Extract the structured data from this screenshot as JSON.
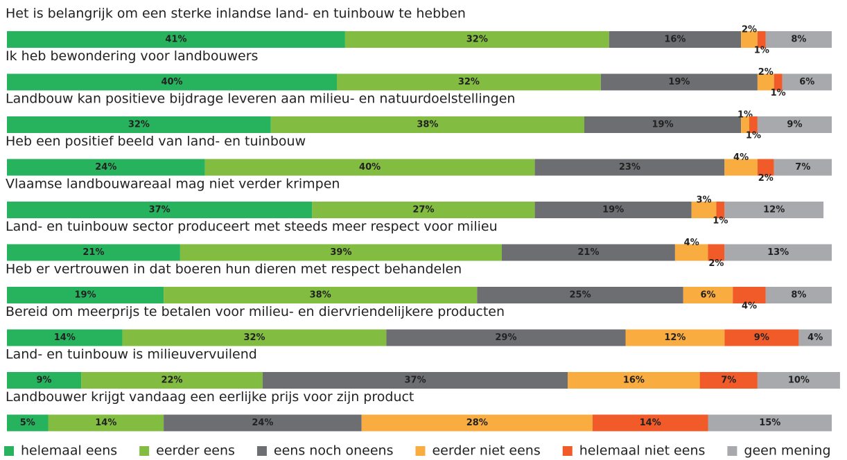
{
  "chart_data": {
    "type": "bar",
    "orientation": "horizontal",
    "stacked": true,
    "xlim": [
      0,
      100
    ],
    "categories": [
      "Het is belangrijk om een sterke inlandse land- en tuinbouw te hebben",
      "Ik heb bewondering voor landbouwers",
      "Landbouw kan positieve bijdrage leveren aan milieu- en natuurdoelstellingen",
      "Heb een positief beeld van land- en tuinbouw",
      "Vlaamse landbouwareaal mag niet verder krimpen",
      "Land- en tuinbouw sector produceert met steeds meer respect voor milieu",
      "Heb er vertrouwen in dat boeren hun dieren met respect behandelen",
      "Bereid om meerprijs te betalen voor milieu- en diervriendelijkere producten",
      "Land- en tuinbouw is milieuvervuilend",
      "Landbouwer krijgt vandaag een eerlijke prijs voor zijn product"
    ],
    "legend": "bottom",
    "series": [
      {
        "name": "helemaal eens",
        "color": "#27b35e",
        "values": [
          41,
          40,
          32,
          24,
          37,
          21,
          19,
          14,
          9,
          5
        ],
        "value_labels": [
          "41%",
          "40%",
          "32%",
          "24%",
          "37%",
          "21%",
          "19%",
          "14%",
          "9%",
          "5%"
        ]
      },
      {
        "name": "eerder eens",
        "color": "#82bd41",
        "values": [
          32,
          32,
          38,
          40,
          27,
          39,
          38,
          32,
          22,
          14
        ],
        "value_labels": [
          "32%",
          "32%",
          "38%",
          "40%",
          "27%",
          "39%",
          "38%",
          "32%",
          "22%",
          "14%"
        ]
      },
      {
        "name": "eens noch oneens",
        "color": "#6d6e71",
        "values": [
          16,
          19,
          19,
          23,
          19,
          21,
          25,
          29,
          37,
          24
        ],
        "value_labels": [
          "16%",
          "19%",
          "19%",
          "23%",
          "19%",
          "21%",
          "25%",
          "29%",
          "37%",
          "24%"
        ]
      },
      {
        "name": "eerder niet eens",
        "color": "#f9ac40",
        "values": [
          2,
          2,
          1,
          4,
          3,
          4,
          6,
          12,
          16,
          28
        ],
        "value_labels": [
          "2%",
          "2%",
          "1%",
          "4%",
          "3%",
          "4%",
          "6%",
          "12%",
          "16%",
          "28%"
        ]
      },
      {
        "name": "helemaal niet eens",
        "color": "#f15a29",
        "values": [
          1,
          1,
          1,
          2,
          1,
          2,
          4,
          9,
          7,
          14
        ],
        "value_labels": [
          "1%",
          "1%",
          "1%",
          "2%",
          "1%",
          "2%",
          "4%",
          "9%",
          "7%",
          "14%"
        ]
      },
      {
        "name": "geen mening",
        "color": "#a7a9ac",
        "values": [
          8,
          6,
          9,
          7,
          12,
          13,
          8,
          4,
          10,
          15
        ],
        "value_labels": [
          "8%",
          "6%",
          "9%",
          "7%",
          "12%",
          "13%",
          "8%",
          "4%",
          "10%",
          "15%"
        ]
      }
    ]
  }
}
